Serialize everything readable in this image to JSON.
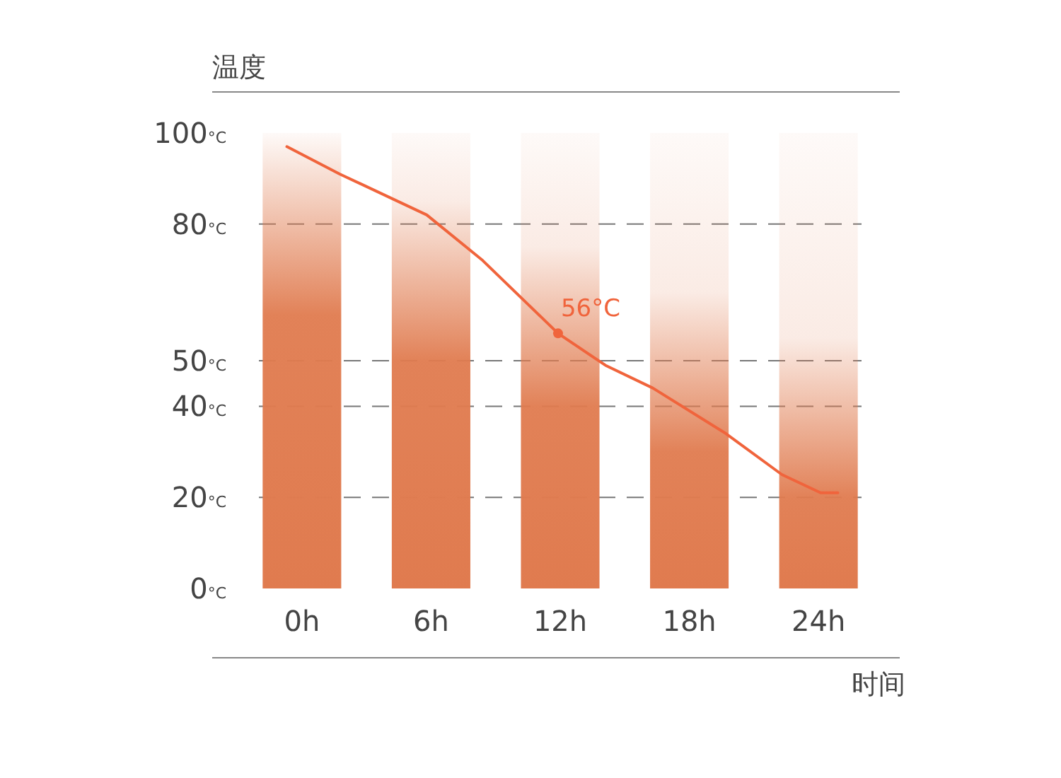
{
  "chart_data": {
    "type": "bar",
    "ylabel": "温度",
    "xlabel": "时间",
    "xlim": [
      -2,
      26
    ],
    "xticks": [
      {
        "value": 0,
        "label": "0h"
      },
      {
        "value": 6,
        "label": "6h"
      },
      {
        "value": 12,
        "label": "12h"
      },
      {
        "value": 18,
        "label": "18h"
      },
      {
        "value": 24,
        "label": "24h"
      }
    ],
    "ylim": [
      0,
      100
    ],
    "yticks": [
      {
        "value": 0,
        "label": "0°C"
      },
      {
        "value": 20,
        "label": "20°C"
      },
      {
        "value": 40,
        "label": "40°C"
      },
      {
        "value": 50,
        "label": "50°C"
      },
      {
        "value": 80,
        "label": "80°C"
      },
      {
        "value": 100,
        "label": "100°C"
      }
    ],
    "grid": "y",
    "series": [
      {
        "color": "#e07b4f",
        "x": [
          0,
          6,
          12,
          18,
          24
        ],
        "values": [
          100,
          100,
          100,
          100,
          100
        ]
      },
      {
        "type": "line",
        "color": "#f0643c",
        "marker": "none",
        "x": [
          -0.7,
          1.75,
          5.8,
          8.4,
          11.9,
          14.1,
          16.3,
          19.7,
          22.3,
          24.1,
          24.9
        ],
        "values": [
          97,
          91,
          82,
          72,
          56,
          49,
          44,
          34,
          25,
          21,
          21
        ]
      }
    ],
    "annotations": [
      {
        "text": "56°C",
        "x": 11.9,
        "y": 56
      }
    ]
  }
}
